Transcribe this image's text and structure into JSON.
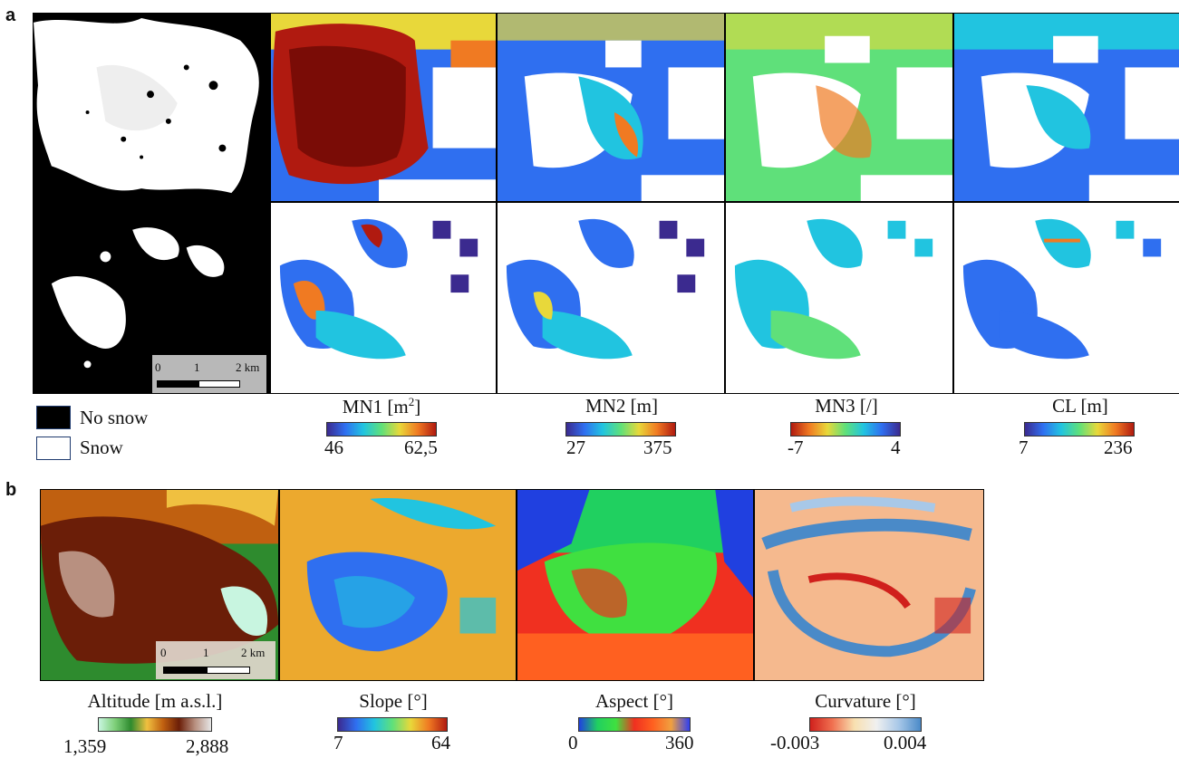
{
  "panels": {
    "a": {
      "letter": "a"
    },
    "b": {
      "letter": "b"
    }
  },
  "legend": {
    "no_snow": "No snow",
    "snow": "Snow",
    "no_snow_color": "#000000",
    "snow_color": "#ffffff"
  },
  "scalebar_a": {
    "t0": "0",
    "t1": "1",
    "t2": "2 km"
  },
  "scalebar_b": {
    "t0": "0",
    "t1": "1",
    "t2": "2 km"
  },
  "colorbars_a": [
    {
      "title": "MN1 [m",
      "sup": "2",
      "close": "]",
      "min": "46",
      "max": "62,5",
      "colors": [
        "#3b2a8f",
        "#2f6ff0",
        "#21c4e0",
        "#5fe07a",
        "#e8d83a",
        "#f07a22",
        "#b01a10"
      ]
    },
    {
      "title": "MN2 [m]",
      "sup": "",
      "close": "",
      "min": "27",
      "max": "375",
      "colors": [
        "#3b2a8f",
        "#2f6ff0",
        "#21c4e0",
        "#5fe07a",
        "#e8d83a",
        "#f07a22",
        "#b01a10"
      ]
    },
    {
      "title": "MN3 [/]",
      "sup": "",
      "close": "",
      "min": "-7",
      "max": "4",
      "colors": [
        "#b01a10",
        "#f07a22",
        "#e8d83a",
        "#5fe07a",
        "#21c4e0",
        "#2f6ff0",
        "#3b2a8f"
      ]
    },
    {
      "title": "CL [m]",
      "sup": "",
      "close": "",
      "min": "7",
      "max": "236",
      "colors": [
        "#3b2a8f",
        "#2f6ff0",
        "#21c4e0",
        "#5fe07a",
        "#e8d83a",
        "#f07a22",
        "#b01a10"
      ]
    }
  ],
  "colorbars_b": [
    {
      "title": "Altitude [m a.s.l.]",
      "min": "1,359",
      "max": "2,888",
      "colors": [
        "#c8f5e0",
        "#7fd07a",
        "#2e8b2e",
        "#f0c040",
        "#c06010",
        "#6b1e08",
        "#b89080",
        "#e6e6e6"
      ]
    },
    {
      "title": "Slope [°]",
      "min": "7",
      "max": "64",
      "colors": [
        "#3b2a8f",
        "#2f6ff0",
        "#21c4e0",
        "#5fe07a",
        "#e8d83a",
        "#f07a22",
        "#b01a10"
      ]
    },
    {
      "title": "Aspect [°]",
      "min": "0",
      "max": "360",
      "colors": [
        "#2040e0",
        "#20d060",
        "#40e040",
        "#f03020",
        "#ff6020",
        "#f0a040",
        "#3040f0"
      ]
    },
    {
      "title": "Curvature [°]",
      "min": "-0.003",
      "max": "0.004",
      "colors": [
        "#d0201c",
        "#f07050",
        "#f8e0b0",
        "#f0f0f0",
        "#a8c8e8",
        "#4a8ac8"
      ]
    }
  ]
}
